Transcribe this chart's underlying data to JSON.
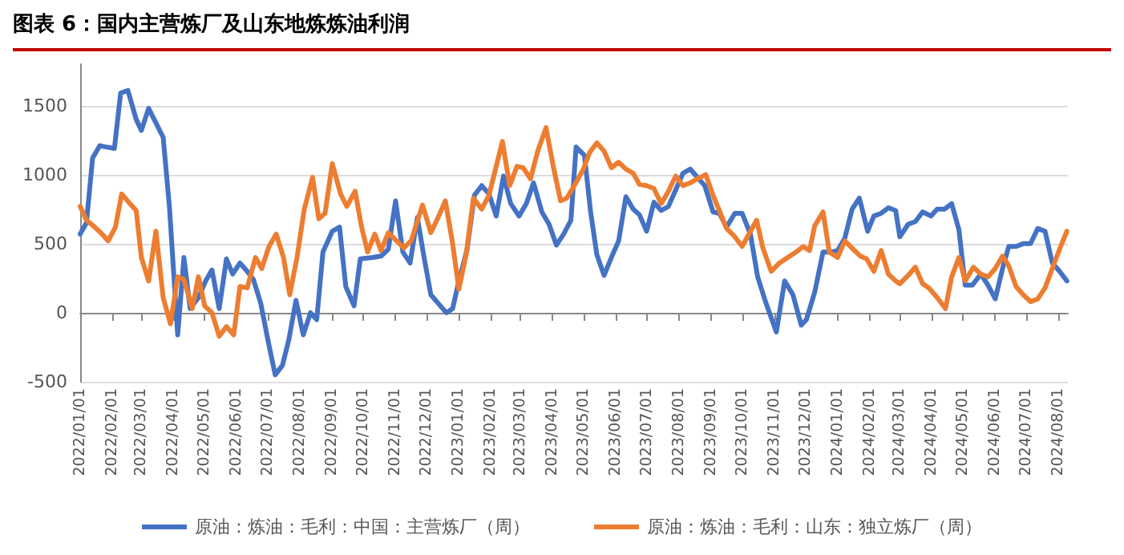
{
  "chart_data": {
    "type": "line",
    "title": "图表 6：国内主营炼厂及山东地炼炼油利润",
    "ylim": [
      -500,
      1800
    ],
    "yticks": [
      -500,
      0,
      500,
      1000,
      1500
    ],
    "xlim": [
      "2022-01-01",
      "2024-08-10"
    ],
    "xticks": [
      {
        "value": "2022-01-01",
        "label": "2022/01/01"
      },
      {
        "value": "2022-02-01",
        "label": "2022/02/01"
      },
      {
        "value": "2022-03-01",
        "label": "2022/03/01"
      },
      {
        "value": "2022-04-01",
        "label": "2022/04/01"
      },
      {
        "value": "2022-05-01",
        "label": "2022/05/01"
      },
      {
        "value": "2022-06-01",
        "label": "2022/06/01"
      },
      {
        "value": "2022-07-01",
        "label": "2022/07/01"
      },
      {
        "value": "2022-08-01",
        "label": "2022/08/01"
      },
      {
        "value": "2022-09-01",
        "label": "2022/09/01"
      },
      {
        "value": "2022-10-01",
        "label": "2022/10/01"
      },
      {
        "value": "2022-11-01",
        "label": "2022/11/01"
      },
      {
        "value": "2022-12-01",
        "label": "2022/12/01"
      },
      {
        "value": "2023-01-01",
        "label": "2023/01/01"
      },
      {
        "value": "2023-02-01",
        "label": "2023/02/01"
      },
      {
        "value": "2023-03-01",
        "label": "2023/03/01"
      },
      {
        "value": "2023-04-01",
        "label": "2023/04/01"
      },
      {
        "value": "2023-05-01",
        "label": "2023/05/01"
      },
      {
        "value": "2023-06-01",
        "label": "2023/06/01"
      },
      {
        "value": "2023-07-01",
        "label": "2023/07/01"
      },
      {
        "value": "2023-08-01",
        "label": "2023/08/01"
      },
      {
        "value": "2023-09-01",
        "label": "2023/09/01"
      },
      {
        "value": "2023-10-01",
        "label": "2023/10/01"
      },
      {
        "value": "2023-11-01",
        "label": "2023/11/01"
      },
      {
        "value": "2023-12-01",
        "label": "2023/12/01"
      },
      {
        "value": "2024-01-01",
        "label": "2024/01/01"
      },
      {
        "value": "2024-02-01",
        "label": "2024/02/01"
      },
      {
        "value": "2024-03-01",
        "label": "2024/03/01"
      },
      {
        "value": "2024-04-01",
        "label": "2024/04/01"
      },
      {
        "value": "2024-05-01",
        "label": "2024/05/01"
      },
      {
        "value": "2024-06-01",
        "label": "2024/06/01"
      },
      {
        "value": "2024-07-01",
        "label": "2024/07/01"
      },
      {
        "value": "2024-08-01",
        "label": "2024/08/01"
      }
    ],
    "grid": "y",
    "legend": "bottom",
    "marker": "none",
    "line_style": "solid",
    "series": [
      {
        "name": "原油：炼油：毛利：中国：主营炼厂（周）",
        "color": "#4472c4",
        "x": [
          "2022-01-01",
          "2022-01-07",
          "2022-01-13",
          "2022-01-20",
          "2022-01-26",
          "2022-02-03",
          "2022-02-09",
          "2022-02-16",
          "2022-02-24",
          "2022-03-01",
          "2022-03-08",
          "2022-03-14",
          "2022-03-22",
          "2022-03-28",
          "2022-04-05",
          "2022-04-11",
          "2022-04-17",
          "2022-04-25",
          "2022-05-02",
          "2022-05-08",
          "2022-05-15",
          "2022-05-22",
          "2022-05-28",
          "2022-06-04",
          "2022-06-11",
          "2022-06-17",
          "2022-06-24",
          "2022-07-01",
          "2022-07-08",
          "2022-07-15",
          "2022-07-21",
          "2022-07-28",
          "2022-08-04",
          "2022-08-11",
          "2022-08-17",
          "2022-08-23",
          "2022-09-01",
          "2022-09-08",
          "2022-09-14",
          "2022-09-22",
          "2022-09-28",
          "2022-10-10",
          "2022-10-18",
          "2022-10-25",
          "2022-11-01",
          "2022-11-08",
          "2022-11-15",
          "2022-11-22",
          "2022-11-28",
          "2022-12-05",
          "2022-12-13",
          "2022-12-20",
          "2022-12-26",
          "2023-01-01",
          "2023-01-09",
          "2023-01-16",
          "2023-01-23",
          "2023-01-30",
          "2023-02-06",
          "2023-02-13",
          "2023-02-20",
          "2023-02-28",
          "2023-03-07",
          "2023-03-14",
          "2023-03-22",
          "2023-03-29",
          "2023-04-05",
          "2023-04-12",
          "2023-04-19",
          "2023-04-24",
          "2023-05-02",
          "2023-05-08",
          "2023-05-14",
          "2023-05-21",
          "2023-05-28",
          "2023-06-04",
          "2023-06-11",
          "2023-06-18",
          "2023-06-24",
          "2023-07-01",
          "2023-07-08",
          "2023-07-15",
          "2023-07-22",
          "2023-07-29",
          "2023-08-05",
          "2023-08-12",
          "2023-08-19",
          "2023-08-26",
          "2023-09-03",
          "2023-09-09",
          "2023-09-16",
          "2023-09-24",
          "2023-10-01",
          "2023-10-09",
          "2023-10-16",
          "2023-10-24",
          "2023-11-03",
          "2023-11-11",
          "2023-11-19",
          "2023-11-27",
          "2023-12-02",
          "2023-12-10",
          "2023-12-18",
          "2023-12-26",
          "2024-01-01",
          "2024-01-08",
          "2024-01-15",
          "2024-01-22",
          "2024-01-30",
          "2024-02-05",
          "2024-02-12",
          "2024-02-19",
          "2024-02-26",
          "2024-03-01",
          "2024-03-09",
          "2024-03-16",
          "2024-03-23",
          "2024-03-31",
          "2024-04-06",
          "2024-04-13",
          "2024-04-20",
          "2024-04-27",
          "2024-05-03",
          "2024-05-10",
          "2024-05-18",
          "2024-05-25",
          "2024-06-01",
          "2024-06-08",
          "2024-06-14",
          "2024-06-21",
          "2024-06-28",
          "2024-07-05",
          "2024-07-12",
          "2024-07-19",
          "2024-07-26",
          "2024-08-02",
          "2024-08-09"
        ],
        "values": [
          570,
          650,
          1120,
          1210,
          1200,
          1190,
          1590,
          1610,
          1400,
          1320,
          1480,
          1390,
          1270,
          770,
          -160,
          400,
          30,
          110,
          230,
          310,
          30,
          390,
          280,
          360,
          300,
          240,
          70,
          -200,
          -450,
          -380,
          -200,
          90,
          -160,
          0,
          -50,
          440,
          590,
          620,
          190,
          50,
          390,
          400,
          410,
          460,
          810,
          440,
          360,
          690,
          420,
          130,
          60,
          0,
          30,
          230,
          460,
          850,
          920,
          860,
          700,
          990,
          790,
          700,
          790,
          940,
          730,
          640,
          490,
          570,
          670,
          1200,
          1140,
          730,
          420,
          270,
          400,
          520,
          840,
          750,
          710,
          590,
          800,
          740,
          770,
          890,
          1010,
          1040,
          980,
          920,
          730,
          720,
          620,
          720,
          720,
          570,
          260,
          70,
          -140,
          230,
          130,
          -90,
          -50,
          150,
          440,
          440,
          450,
          540,
          750,
          830,
          590,
          700,
          720,
          760,
          740,
          550,
          640,
          660,
          730,
          700,
          750,
          750,
          790,
          600,
          200,
          200,
          280,
          200,
          100,
          320,
          480,
          480,
          500,
          500,
          610,
          590,
          360,
          300,
          230
        ]
      },
      {
        "name": "原油：炼油：毛利：山东：独立炼厂（周）",
        "color": "#ed7d31",
        "x": [
          "2022-01-01",
          "2022-01-07",
          "2022-01-15",
          "2022-01-22",
          "2022-01-28",
          "2022-02-04",
          "2022-02-10",
          "2022-02-18",
          "2022-02-24",
          "2022-03-01",
          "2022-03-08",
          "2022-03-15",
          "2022-03-22",
          "2022-03-29",
          "2022-04-05",
          "2022-04-11",
          "2022-04-19",
          "2022-04-25",
          "2022-05-01",
          "2022-05-08",
          "2022-05-15",
          "2022-05-22",
          "2022-05-29",
          "2022-06-04",
          "2022-06-11",
          "2022-06-19",
          "2022-06-25",
          "2022-07-02",
          "2022-07-09",
          "2022-07-16",
          "2022-07-22",
          "2022-07-29",
          "2022-08-05",
          "2022-08-13",
          "2022-08-19",
          "2022-08-25",
          "2022-09-01",
          "2022-09-09",
          "2022-09-15",
          "2022-09-23",
          "2022-09-29",
          "2022-10-05",
          "2022-10-12",
          "2022-10-18",
          "2022-10-25",
          "2022-11-02",
          "2022-11-09",
          "2022-11-16",
          "2022-11-27",
          "2022-12-05",
          "2022-12-12",
          "2022-12-19",
          "2022-12-26",
          "2023-01-01",
          "2023-01-08",
          "2023-01-15",
          "2023-01-23",
          "2023-01-30",
          "2023-02-12",
          "2023-02-19",
          "2023-02-26",
          "2023-03-04",
          "2023-03-11",
          "2023-03-18",
          "2023-03-26",
          "2023-04-02",
          "2023-04-09",
          "2023-04-15",
          "2023-04-23",
          "2023-05-01",
          "2023-05-07",
          "2023-05-14",
          "2023-05-21",
          "2023-05-28",
          "2023-06-04",
          "2023-06-11",
          "2023-06-18",
          "2023-06-24",
          "2023-07-01",
          "2023-07-08",
          "2023-07-15",
          "2023-07-22",
          "2023-07-29",
          "2023-08-05",
          "2023-08-12",
          "2023-08-19",
          "2023-08-27",
          "2023-09-03",
          "2023-09-09",
          "2023-09-16",
          "2023-09-24",
          "2023-10-01",
          "2023-10-15",
          "2023-10-21",
          "2023-10-29",
          "2023-11-06",
          "2023-11-14",
          "2023-11-22",
          "2023-11-29",
          "2023-12-05",
          "2023-12-10",
          "2023-12-18",
          "2023-12-24",
          "2024-01-01",
          "2024-01-08",
          "2024-01-16",
          "2024-01-23",
          "2024-01-29",
          "2024-02-05",
          "2024-02-12",
          "2024-02-19",
          "2024-02-26",
          "2024-03-01",
          "2024-03-09",
          "2024-03-16",
          "2024-03-23",
          "2024-03-29",
          "2024-04-06",
          "2024-04-14",
          "2024-04-20",
          "2024-04-27",
          "2024-05-03",
          "2024-05-11",
          "2024-05-18",
          "2024-05-25",
          "2024-06-01",
          "2024-06-08",
          "2024-06-14",
          "2024-06-21",
          "2024-06-28",
          "2024-07-05",
          "2024-07-12",
          "2024-07-19",
          "2024-07-26",
          "2024-08-02",
          "2024-08-09"
        ],
        "values": [
          770,
          670,
          620,
          570,
          520,
          620,
          860,
          790,
          740,
          400,
          230,
          590,
          110,
          -80,
          260,
          240,
          30,
          260,
          50,
          0,
          -170,
          -100,
          -160,
          190,
          180,
          400,
          320,
          480,
          570,
          400,
          130,
          400,
          750,
          980,
          680,
          720,
          1080,
          860,
          770,
          880,
          630,
          440,
          570,
          450,
          580,
          520,
          470,
          520,
          780,
          580,
          690,
          810,
          500,
          170,
          420,
          830,
          750,
          850,
          1240,
          920,
          1060,
          1050,
          970,
          1170,
          1340,
          1060,
          810,
          830,
          930,
          1040,
          1160,
          1230,
          1170,
          1050,
          1090,
          1040,
          1010,
          930,
          920,
          900,
          790,
          880,
          990,
          920,
          940,
          970,
          1000,
          850,
          740,
          610,
          550,
          480,
          670,
          470,
          300,
          360,
          400,
          440,
          480,
          450,
          630,
          730,
          440,
          400,
          520,
          460,
          410,
          390,
          300,
          450,
          280,
          230,
          210,
          270,
          330,
          210,
          180,
          110,
          30,
          260,
          400,
          230,
          330,
          280,
          260,
          320,
          410,
          340,
          190,
          130,
          80,
          100,
          180,
          320,
          460,
          590
        ]
      }
    ]
  }
}
